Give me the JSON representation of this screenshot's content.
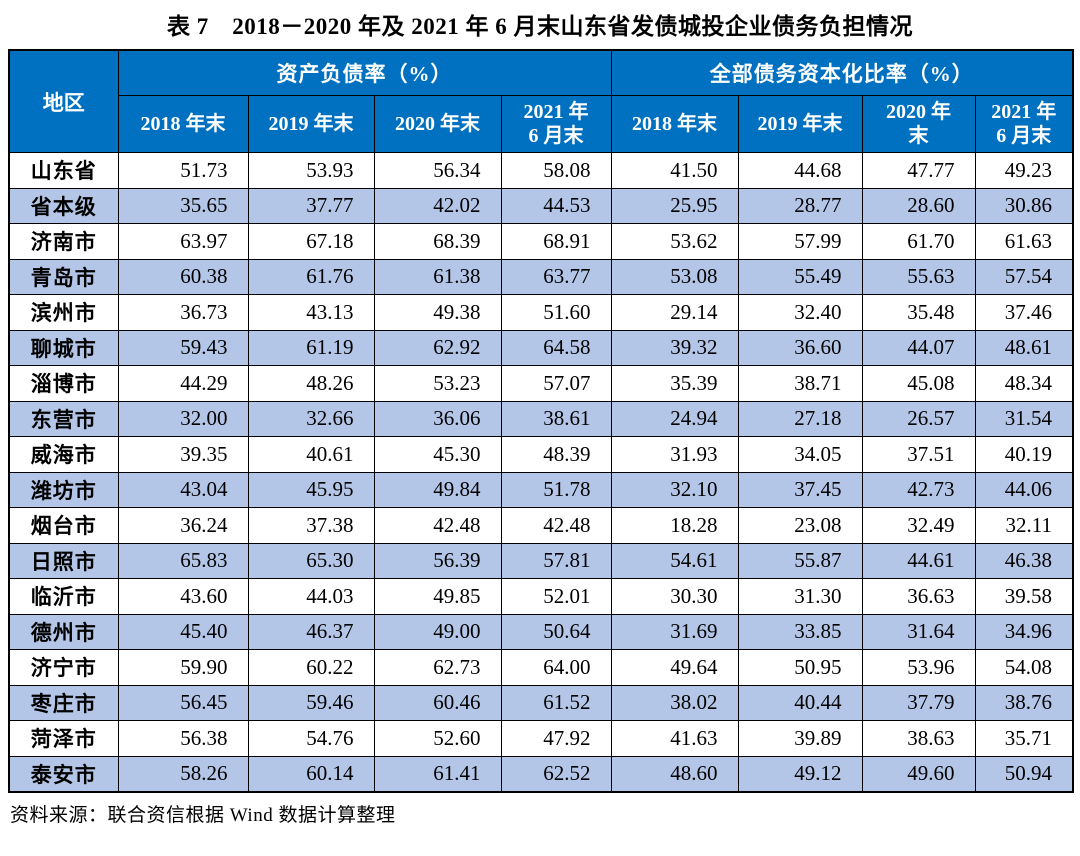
{
  "title": "表 7　2018－2020 年及 2021 年 6 月末山东省发债城投企业债务负担情况",
  "source_note": "资料来源：联合资信根据 Wind 数据计算整理",
  "colors": {
    "header_bg": "#0070C0",
    "header_text": "#FFFFFF",
    "alt_row_bg": "#B4C6E7",
    "row_bg": "#FFFFFF",
    "border": "#000000"
  },
  "table": {
    "region_header": "地区",
    "group_headers": [
      {
        "label": "资产负债率（%）",
        "colspan": 4
      },
      {
        "label": "全部债务资本化比率（%）",
        "colspan": 4
      }
    ],
    "sub_headers": [
      "2018 年末",
      "2019 年末",
      "2020 年末",
      "2021 年\n6 月末",
      "2018 年末",
      "2019 年末",
      "2020 年\n末",
      "2021 年\n6 月末"
    ],
    "rows": [
      {
        "region": "山东省",
        "values": [
          "51.73",
          "53.93",
          "56.34",
          "58.08",
          "41.50",
          "44.68",
          "47.77",
          "49.23"
        ]
      },
      {
        "region": "省本级",
        "values": [
          "35.65",
          "37.77",
          "42.02",
          "44.53",
          "25.95",
          "28.77",
          "28.60",
          "30.86"
        ]
      },
      {
        "region": "济南市",
        "values": [
          "63.97",
          "67.18",
          "68.39",
          "68.91",
          "53.62",
          "57.99",
          "61.70",
          "61.63"
        ]
      },
      {
        "region": "青岛市",
        "values": [
          "60.38",
          "61.76",
          "61.38",
          "63.77",
          "53.08",
          "55.49",
          "55.63",
          "57.54"
        ]
      },
      {
        "region": "滨州市",
        "values": [
          "36.73",
          "43.13",
          "49.38",
          "51.60",
          "29.14",
          "32.40",
          "35.48",
          "37.46"
        ]
      },
      {
        "region": "聊城市",
        "values": [
          "59.43",
          "61.19",
          "62.92",
          "64.58",
          "39.32",
          "36.60",
          "44.07",
          "48.61"
        ]
      },
      {
        "region": "淄博市",
        "values": [
          "44.29",
          "48.26",
          "53.23",
          "57.07",
          "35.39",
          "38.71",
          "45.08",
          "48.34"
        ]
      },
      {
        "region": "东营市",
        "values": [
          "32.00",
          "32.66",
          "36.06",
          "38.61",
          "24.94",
          "27.18",
          "26.57",
          "31.54"
        ]
      },
      {
        "region": "威海市",
        "values": [
          "39.35",
          "40.61",
          "45.30",
          "48.39",
          "31.93",
          "34.05",
          "37.51",
          "40.19"
        ]
      },
      {
        "region": "潍坊市",
        "values": [
          "43.04",
          "45.95",
          "49.84",
          "51.78",
          "32.10",
          "37.45",
          "42.73",
          "44.06"
        ]
      },
      {
        "region": "烟台市",
        "values": [
          "36.24",
          "37.38",
          "42.48",
          "42.48",
          "18.28",
          "23.08",
          "32.49",
          "32.11"
        ]
      },
      {
        "region": "日照市",
        "values": [
          "65.83",
          "65.30",
          "56.39",
          "57.81",
          "54.61",
          "55.87",
          "44.61",
          "46.38"
        ]
      },
      {
        "region": "临沂市",
        "values": [
          "43.60",
          "44.03",
          "49.85",
          "52.01",
          "30.30",
          "31.30",
          "36.63",
          "39.58"
        ]
      },
      {
        "region": "德州市",
        "values": [
          "45.40",
          "46.37",
          "49.00",
          "50.64",
          "31.69",
          "33.85",
          "31.64",
          "34.96"
        ]
      },
      {
        "region": "济宁市",
        "values": [
          "59.90",
          "60.22",
          "62.73",
          "64.00",
          "49.64",
          "50.95",
          "53.96",
          "54.08"
        ]
      },
      {
        "region": "枣庄市",
        "values": [
          "56.45",
          "59.46",
          "60.46",
          "61.52",
          "38.02",
          "40.44",
          "37.79",
          "38.76"
        ]
      },
      {
        "region": "菏泽市",
        "values": [
          "56.38",
          "54.76",
          "52.60",
          "47.92",
          "41.63",
          "39.89",
          "38.63",
          "35.71"
        ]
      },
      {
        "region": "泰安市",
        "values": [
          "58.26",
          "60.14",
          "61.41",
          "62.52",
          "48.60",
          "49.12",
          "49.60",
          "50.94"
        ]
      }
    ]
  }
}
